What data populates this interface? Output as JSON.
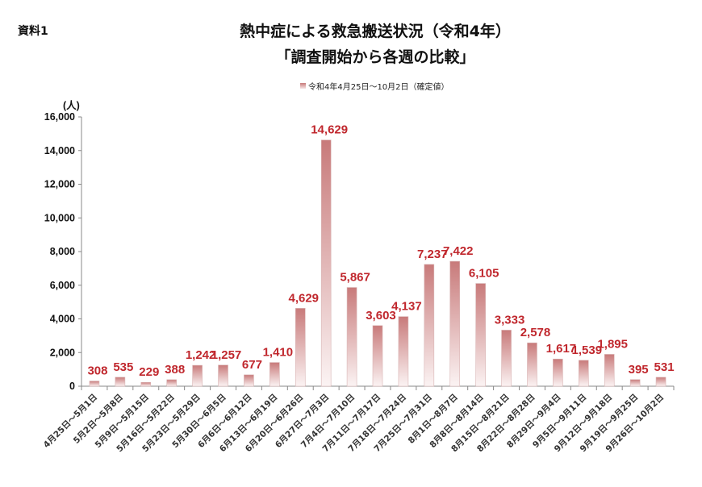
{
  "doc_label": "資料1",
  "chart_data": {
    "type": "bar",
    "title": "熱中症による救急搬送状況（令和4年）",
    "subtitle": "「調査開始から各週の比較」",
    "ylabel": "(人)",
    "xlabel": "",
    "ylim": [
      0,
      16000
    ],
    "yticks": [
      0,
      2000,
      4000,
      6000,
      8000,
      10000,
      12000,
      14000,
      16000
    ],
    "ytick_labels": [
      "0",
      "2,000",
      "4,000",
      "6,000",
      "8,000",
      "10,000",
      "12,000",
      "14,000",
      "16,000"
    ],
    "grid": false,
    "legend_position": "top-center",
    "color": "#c87a7a",
    "label_color": "#c0272d",
    "series": [
      {
        "name": "令和4年4月25日～10月2日（確定値）",
        "values": [
          308,
          535,
          229,
          388,
          1242,
          1257,
          677,
          1410,
          4629,
          14629,
          5867,
          3603,
          4137,
          7237,
          7422,
          6105,
          3333,
          2578,
          1617,
          1539,
          1895,
          395,
          531
        ],
        "value_labels": [
          "308",
          "535",
          "229",
          "388",
          "1,242",
          "1,257",
          "677",
          "1,410",
          "4,629",
          "14,629",
          "5,867",
          "3,603",
          "4,137",
          "7,237",
          "7,422",
          "6,105",
          "3,333",
          "2,578",
          "1,617",
          "1,539",
          "1,895",
          "395",
          "531"
        ]
      }
    ],
    "categories": [
      "4月25日～5月1日",
      "5月2日～5月8日",
      "5月9日～5月15日",
      "5月16日～5月22日",
      "5月23日～5月29日",
      "5月30日～6月5日",
      "6月6日～6月12日",
      "6月13日～6月19日",
      "6月20日～6月26日",
      "6月27日～7月3日",
      "7月4日～7月10日",
      "7月11日～7月17日",
      "7月18日～7月24日",
      "7月25日～7月31日",
      "8月1日～8月7日",
      "8月8日～8月14日",
      "8月15日～8月21日",
      "8月22日～8月28日",
      "8月29日～9月4日",
      "9月5日～9月11日",
      "9月12日～9月18日",
      "9月19日～9月25日",
      "9月26日～10月2日"
    ]
  }
}
